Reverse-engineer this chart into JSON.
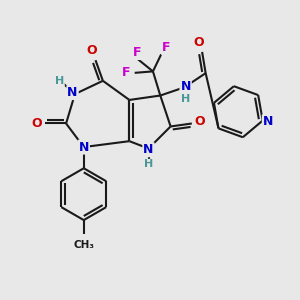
{
  "bg_color": "#e8e8e8",
  "bond_color": "#1a1a1a",
  "bond_width": 1.5,
  "atom_colors": {
    "N": "#0000cc",
    "O": "#cc0000",
    "F": "#cc00cc",
    "H": "#4a9999",
    "C": "#1a1a1a"
  },
  "font_size_atom": 9,
  "font_size_h": 8
}
